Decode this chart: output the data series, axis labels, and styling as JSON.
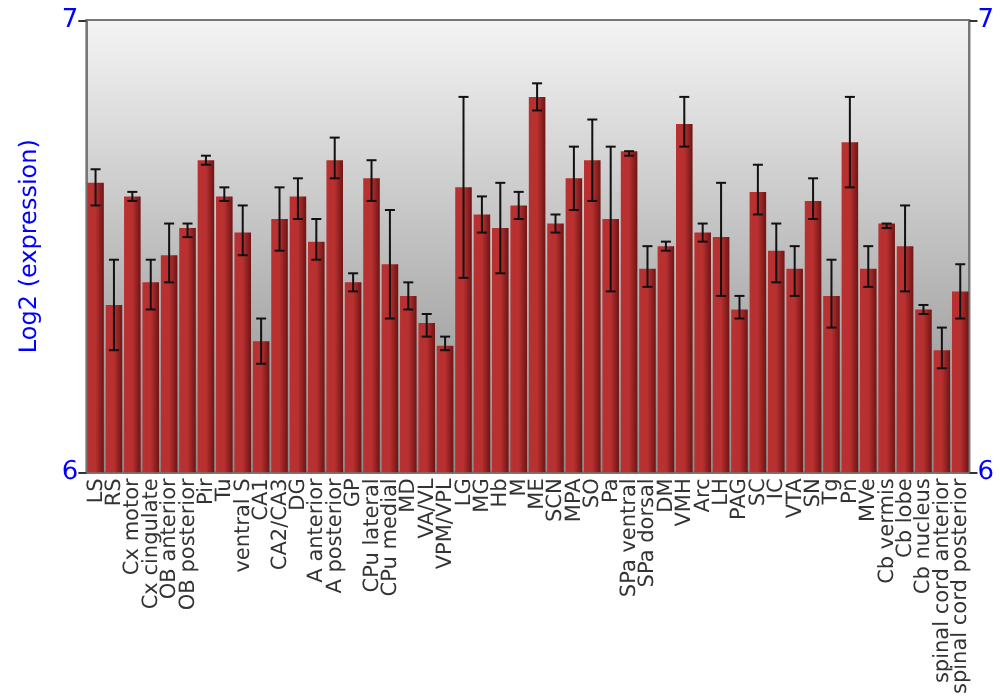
{
  "chart_data": {
    "type": "bar",
    "ylabel": "Log2 (expression)",
    "categories": [
      "LS",
      "RS",
      "Cx motor",
      "Cx cingulate",
      "OB anterior",
      "OB posterior",
      "Pir",
      "Tu",
      "ventral S",
      "CA1",
      "CA2/CA3",
      "DG",
      "A anterior",
      "A posterior",
      "GP",
      "CPu lateral",
      "CPu medial",
      "MD",
      "VA/VL",
      "VPM/VPL",
      "LG",
      "MG",
      "Hb",
      "M",
      "ME",
      "SCN",
      "MPA",
      "SO",
      "Pa",
      "SPa ventral",
      "SPa dorsal",
      "DM",
      "VMH",
      "Arc",
      "LH",
      "PAG",
      "SC",
      "IC",
      "VTA",
      "SN",
      "Tg",
      "Pn",
      "MVe",
      "Cb vermis",
      "Cb lobe",
      "Cb nucleus",
      "spinal cord anterior",
      "spinal cord posterior"
    ],
    "values": [
      6.64,
      6.37,
      6.61,
      6.42,
      6.48,
      6.54,
      6.69,
      6.61,
      6.53,
      6.29,
      6.56,
      6.61,
      6.51,
      6.69,
      6.42,
      6.65,
      6.46,
      6.39,
      6.33,
      6.28,
      6.63,
      6.57,
      6.54,
      6.59,
      6.83,
      6.55,
      6.65,
      6.69,
      6.56,
      6.71,
      6.45,
      6.5,
      6.77,
      6.53,
      6.52,
      6.36,
      6.62,
      6.49,
      6.45,
      6.6,
      6.39,
      6.73,
      6.45,
      6.55,
      6.5,
      6.36,
      6.27,
      6.4
    ],
    "errors": [
      [
        6.59,
        6.67
      ],
      [
        6.27,
        6.47
      ],
      [
        6.6,
        6.62
      ],
      [
        6.36,
        6.47
      ],
      [
        6.42,
        6.55
      ],
      [
        6.52,
        6.55
      ],
      [
        6.68,
        6.7
      ],
      [
        6.6,
        6.63
      ],
      [
        6.48,
        6.59
      ],
      [
        6.24,
        6.34
      ],
      [
        6.49,
        6.63
      ],
      [
        6.56,
        6.65
      ],
      [
        6.47,
        6.56
      ],
      [
        6.65,
        6.74
      ],
      [
        6.4,
        6.44
      ],
      [
        6.6,
        6.69
      ],
      [
        6.34,
        6.58
      ],
      [
        6.36,
        6.42
      ],
      [
        6.3,
        6.35
      ],
      [
        6.27,
        6.3
      ],
      [
        6.43,
        6.83
      ],
      [
        6.53,
        6.61
      ],
      [
        6.44,
        6.64
      ],
      [
        6.56,
        6.62
      ],
      [
        6.8,
        6.86
      ],
      [
        6.53,
        6.57
      ],
      [
        6.58,
        6.72
      ],
      [
        6.6,
        6.78
      ],
      [
        6.4,
        6.72
      ],
      [
        6.7,
        6.71
      ],
      [
        6.41,
        6.5
      ],
      [
        6.49,
        6.51
      ],
      [
        6.72,
        6.83
      ],
      [
        6.51,
        6.55
      ],
      [
        6.39,
        6.64
      ],
      [
        6.34,
        6.39
      ],
      [
        6.57,
        6.68
      ],
      [
        6.42,
        6.55
      ],
      [
        6.39,
        6.5
      ],
      [
        6.56,
        6.65
      ],
      [
        6.32,
        6.47
      ],
      [
        6.63,
        6.83
      ],
      [
        6.41,
        6.5
      ],
      [
        6.54,
        6.55
      ],
      [
        6.4,
        6.59
      ],
      [
        6.35,
        6.37
      ],
      [
        6.23,
        6.32
      ],
      [
        6.34,
        6.46
      ]
    ],
    "color": "#b83030",
    "ylim": [
      6,
      7
    ],
    "yticks": [
      6,
      7
    ],
    "y2lim": [
      6,
      7
    ],
    "y2ticks": [
      6,
      7
    ],
    "grid": false
  }
}
